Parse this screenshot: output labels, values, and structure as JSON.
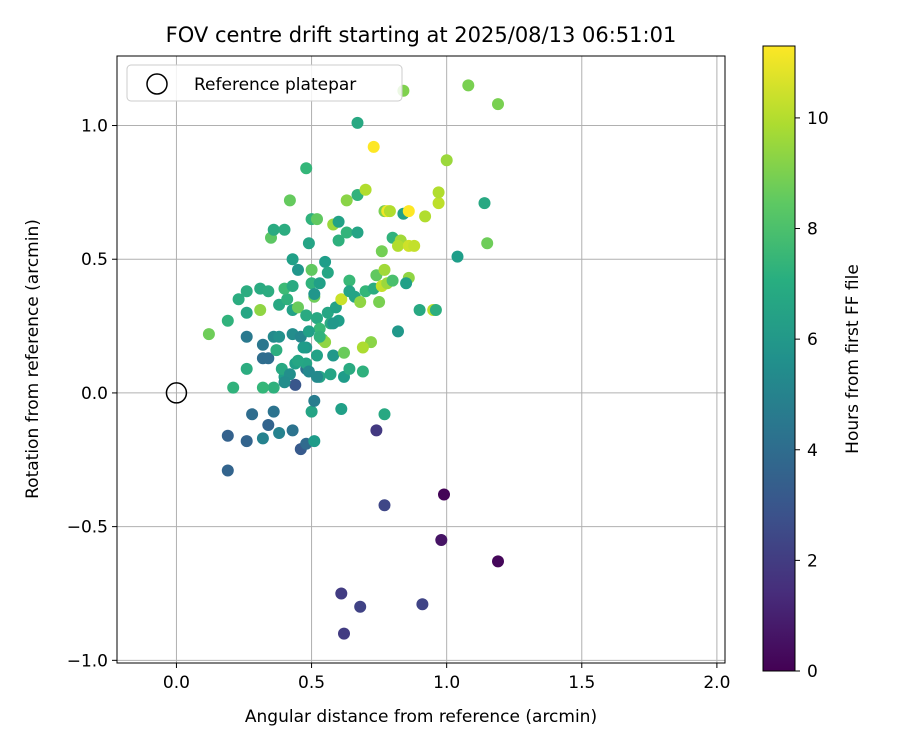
{
  "chart_data": {
    "type": "scatter",
    "title": "FOV centre drift starting at 2025/08/13 06:51:01",
    "xlabel": "Angular distance from reference (arcmin)",
    "ylabel": "Rotation from reference (arcmin)",
    "xlim": [
      -0.22,
      2.03
    ],
    "ylim": [
      -1.01,
      1.26
    ],
    "xticks": [
      {
        "value": 0.0,
        "label": "0.0"
      },
      {
        "value": 0.5,
        "label": "0.5"
      },
      {
        "value": 1.0,
        "label": "1.0"
      },
      {
        "value": 1.5,
        "label": "1.5"
      },
      {
        "value": 2.0,
        "label": "2.0"
      }
    ],
    "yticks": [
      {
        "value": -1.0,
        "label": "−1.0"
      },
      {
        "value": -0.5,
        "label": "−0.5"
      },
      {
        "value": 0.0,
        "label": "0.0"
      },
      {
        "value": 0.5,
        "label": "0.5"
      },
      {
        "value": 1.0,
        "label": "1.0"
      }
    ],
    "grid": true,
    "legend": {
      "position": "top-left",
      "entries": [
        "Reference platepar"
      ]
    },
    "reference_point": {
      "x": 0.0,
      "y": 0.0,
      "label": "Reference platepar"
    },
    "colorbar": {
      "label": "Hours from first FF file",
      "range": [
        0,
        11.3
      ],
      "colormap": "viridis",
      "ticks": [
        {
          "value": 0,
          "label": "0"
        },
        {
          "value": 2,
          "label": "2"
        },
        {
          "value": 4,
          "label": "4"
        },
        {
          "value": 6,
          "label": "6"
        },
        {
          "value": 8,
          "label": "8"
        },
        {
          "value": 10,
          "label": "10"
        }
      ]
    },
    "points": [
      [
        0.99,
        -0.38,
        0.1
      ],
      [
        0.98,
        -0.55,
        0.6
      ],
      [
        1.19,
        -0.63,
        0.2
      ],
      [
        0.61,
        -0.75,
        2.0
      ],
      [
        0.68,
        -0.8,
        2.2
      ],
      [
        0.62,
        -0.9,
        2.0
      ],
      [
        0.91,
        -0.79,
        2.3
      ],
      [
        0.77,
        -0.42,
        2.4
      ],
      [
        0.74,
        -0.14,
        1.9
      ],
      [
        0.44,
        0.03,
        3.0
      ],
      [
        0.19,
        -0.29,
        3.6
      ],
      [
        0.19,
        -0.16,
        3.5
      ],
      [
        0.26,
        -0.18,
        3.6
      ],
      [
        0.28,
        -0.08,
        4.0
      ],
      [
        0.34,
        -0.12,
        3.6
      ],
      [
        0.36,
        -0.07,
        4.3
      ],
      [
        0.32,
        -0.17,
        5.0
      ],
      [
        0.38,
        -0.15,
        5.0
      ],
      [
        0.43,
        -0.14,
        4.3
      ],
      [
        0.46,
        -0.21,
        3.2
      ],
      [
        0.48,
        -0.19,
        3.9
      ],
      [
        0.51,
        -0.18,
        6.2
      ],
      [
        0.5,
        -0.07,
        6.6
      ],
      [
        0.51,
        -0.03,
        4.8
      ],
      [
        0.61,
        -0.06,
        6.4
      ],
      [
        0.77,
        -0.08,
        6.8
      ],
      [
        0.32,
        0.13,
        4.0
      ],
      [
        0.34,
        0.13,
        4.0
      ],
      [
        0.32,
        0.18,
        4.5
      ],
      [
        0.26,
        0.21,
        4.6
      ],
      [
        0.36,
        0.21,
        5.4
      ],
      [
        0.38,
        0.21,
        5.7
      ],
      [
        0.43,
        0.22,
        5.5
      ],
      [
        0.46,
        0.21,
        5.2
      ],
      [
        0.48,
        0.17,
        6.0
      ],
      [
        0.4,
        0.06,
        6.3
      ],
      [
        0.44,
        0.11,
        6.4
      ],
      [
        0.48,
        0.09,
        4.2
      ],
      [
        0.53,
        0.06,
        6.6
      ],
      [
        0.57,
        0.07,
        6.6
      ],
      [
        0.62,
        0.06,
        6.2
      ],
      [
        0.64,
        0.09,
        6.9
      ],
      [
        0.69,
        0.08,
        7.2
      ],
      [
        0.58,
        0.14,
        6.0
      ],
      [
        0.52,
        0.14,
        6.5
      ],
      [
        0.37,
        0.16,
        7.1
      ],
      [
        0.39,
        0.09,
        6.8
      ],
      [
        0.36,
        0.02,
        7.2
      ],
      [
        0.32,
        0.02,
        7.5
      ],
      [
        0.26,
        0.09,
        7.0
      ],
      [
        0.21,
        0.02,
        7.3
      ],
      [
        0.19,
        0.27,
        7.3
      ],
      [
        0.12,
        0.22,
        8.8
      ],
      [
        0.23,
        0.35,
        7.0
      ],
      [
        0.26,
        0.3,
        6.7
      ],
      [
        0.26,
        0.38,
        7.0
      ],
      [
        0.31,
        0.39,
        6.9
      ],
      [
        0.31,
        0.31,
        9.4
      ],
      [
        0.34,
        0.38,
        7.0
      ],
      [
        0.38,
        0.33,
        6.8
      ],
      [
        0.41,
        0.35,
        7.2
      ],
      [
        0.43,
        0.31,
        6.5
      ],
      [
        0.45,
        0.32,
        8.7
      ],
      [
        0.4,
        0.39,
        7.7
      ],
      [
        0.43,
        0.4,
        6.9
      ],
      [
        0.45,
        0.46,
        5.9
      ],
      [
        0.43,
        0.5,
        6.4
      ],
      [
        0.5,
        0.46,
        8.5
      ],
      [
        0.51,
        0.36,
        8.8
      ],
      [
        0.5,
        0.41,
        7.3
      ],
      [
        0.55,
        0.49,
        6.3
      ],
      [
        0.56,
        0.45,
        6.7
      ],
      [
        0.53,
        0.41,
        6.4
      ],
      [
        0.51,
        0.37,
        5.9
      ],
      [
        0.48,
        0.29,
        6.9
      ],
      [
        0.52,
        0.28,
        6.8
      ],
      [
        0.53,
        0.24,
        7.6
      ],
      [
        0.56,
        0.3,
        6.7
      ],
      [
        0.59,
        0.32,
        6.5
      ],
      [
        0.57,
        0.26,
        6.9
      ],
      [
        0.61,
        0.35,
        10.4
      ],
      [
        0.62,
        0.15,
        8.7
      ],
      [
        0.54,
        0.2,
        8.6
      ],
      [
        0.55,
        0.19,
        9.4
      ],
      [
        0.53,
        0.21,
        7.3
      ],
      [
        0.49,
        0.23,
        6.4
      ],
      [
        0.47,
        0.17,
        6.2
      ],
      [
        0.48,
        0.11,
        6.6
      ],
      [
        0.49,
        0.08,
        5.3
      ],
      [
        0.52,
        0.06,
        5.4
      ],
      [
        0.42,
        0.07,
        5.6
      ],
      [
        0.4,
        0.04,
        5.5
      ],
      [
        0.35,
        0.58,
        8.4
      ],
      [
        0.36,
        0.61,
        6.9
      ],
      [
        0.4,
        0.61,
        7.0
      ],
      [
        0.42,
        0.72,
        8.6
      ],
      [
        0.48,
        0.84,
        7.5
      ],
      [
        0.49,
        0.56,
        6.6
      ],
      [
        0.5,
        0.65,
        7.3
      ],
      [
        0.52,
        0.65,
        8.5
      ],
      [
        0.58,
        0.63,
        9.6
      ],
      [
        0.6,
        0.64,
        6.5
      ],
      [
        0.6,
        0.57,
        7.2
      ],
      [
        0.63,
        0.6,
        7.4
      ],
      [
        0.64,
        0.42,
        7.6
      ],
      [
        0.64,
        0.38,
        6.6
      ],
      [
        0.66,
        0.36,
        6.6
      ],
      [
        0.68,
        0.34,
        9.4
      ],
      [
        0.7,
        0.38,
        7.5
      ],
      [
        0.73,
        0.39,
        7.0
      ],
      [
        0.74,
        0.44,
        8.5
      ],
      [
        0.76,
        0.53,
        8.9
      ],
      [
        0.77,
        0.46,
        9.7
      ],
      [
        0.76,
        0.4,
        10.3
      ],
      [
        0.78,
        0.41,
        9.6
      ],
      [
        0.8,
        0.42,
        8.0
      ],
      [
        0.8,
        0.58,
        7.3
      ],
      [
        0.83,
        0.57,
        9.7
      ],
      [
        0.82,
        0.55,
        10.0
      ],
      [
        0.86,
        0.43,
        9.4
      ],
      [
        0.85,
        0.41,
        6.4
      ],
      [
        0.86,
        0.55,
        10.5
      ],
      [
        0.88,
        0.55,
        10.3
      ],
      [
        0.84,
        0.67,
        6.4
      ],
      [
        0.77,
        0.68,
        9.0
      ],
      [
        0.78,
        0.68,
        11.1
      ],
      [
        0.79,
        0.68,
        10.0
      ],
      [
        0.86,
        0.68,
        11.4
      ],
      [
        0.92,
        0.66,
        10.0
      ],
      [
        0.97,
        0.71,
        10.2
      ],
      [
        0.97,
        0.75,
        10.0
      ],
      [
        1.0,
        0.87,
        9.6
      ],
      [
        0.95,
        0.31,
        10.2
      ],
      [
        0.96,
        0.31,
        7.1
      ],
      [
        0.9,
        0.31,
        6.8
      ],
      [
        0.82,
        0.23,
        6.0
      ],
      [
        0.75,
        0.34,
        9.0
      ],
      [
        0.72,
        0.19,
        9.3
      ],
      [
        0.69,
        0.17,
        9.9
      ],
      [
        0.67,
        0.74,
        7.3
      ],
      [
        0.7,
        0.76,
        10.0
      ],
      [
        0.73,
        0.92,
        11.3
      ],
      [
        0.67,
        1.01,
        6.8
      ],
      [
        0.84,
        1.13,
        9.1
      ],
      [
        1.08,
        1.15,
        9.0
      ],
      [
        1.19,
        1.08,
        9.0
      ],
      [
        1.14,
        0.71,
        6.8
      ],
      [
        1.15,
        0.56,
        8.8
      ],
      [
        1.04,
        0.51,
        6.3
      ],
      [
        0.6,
        0.27,
        6.3
      ],
      [
        0.67,
        0.6,
        6.6
      ],
      [
        0.63,
        0.72,
        9.3
      ],
      [
        0.45,
        0.12,
        6.7
      ],
      [
        0.58,
        0.26,
        6.0
      ]
    ]
  }
}
